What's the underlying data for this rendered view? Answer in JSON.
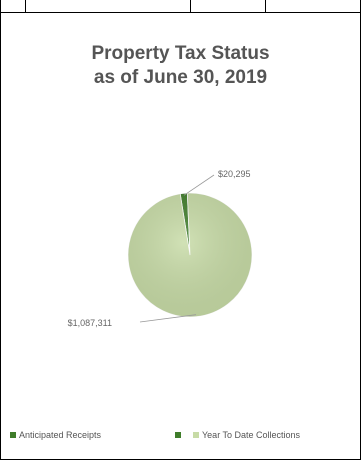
{
  "chart_data": {
    "type": "pie",
    "title_lines": [
      "Property Tax Status",
      "as of June 30, 2019"
    ],
    "slices": [
      {
        "name": "Anticipated Receipts",
        "value": 20295,
        "label": "$20,295",
        "color": "#3f7d2a"
      },
      {
        "name": "Year To Date Collections",
        "value": 1087311,
        "label": "$1,087,311",
        "color": "#c7dba6"
      }
    ],
    "legend_position": "bottom"
  }
}
